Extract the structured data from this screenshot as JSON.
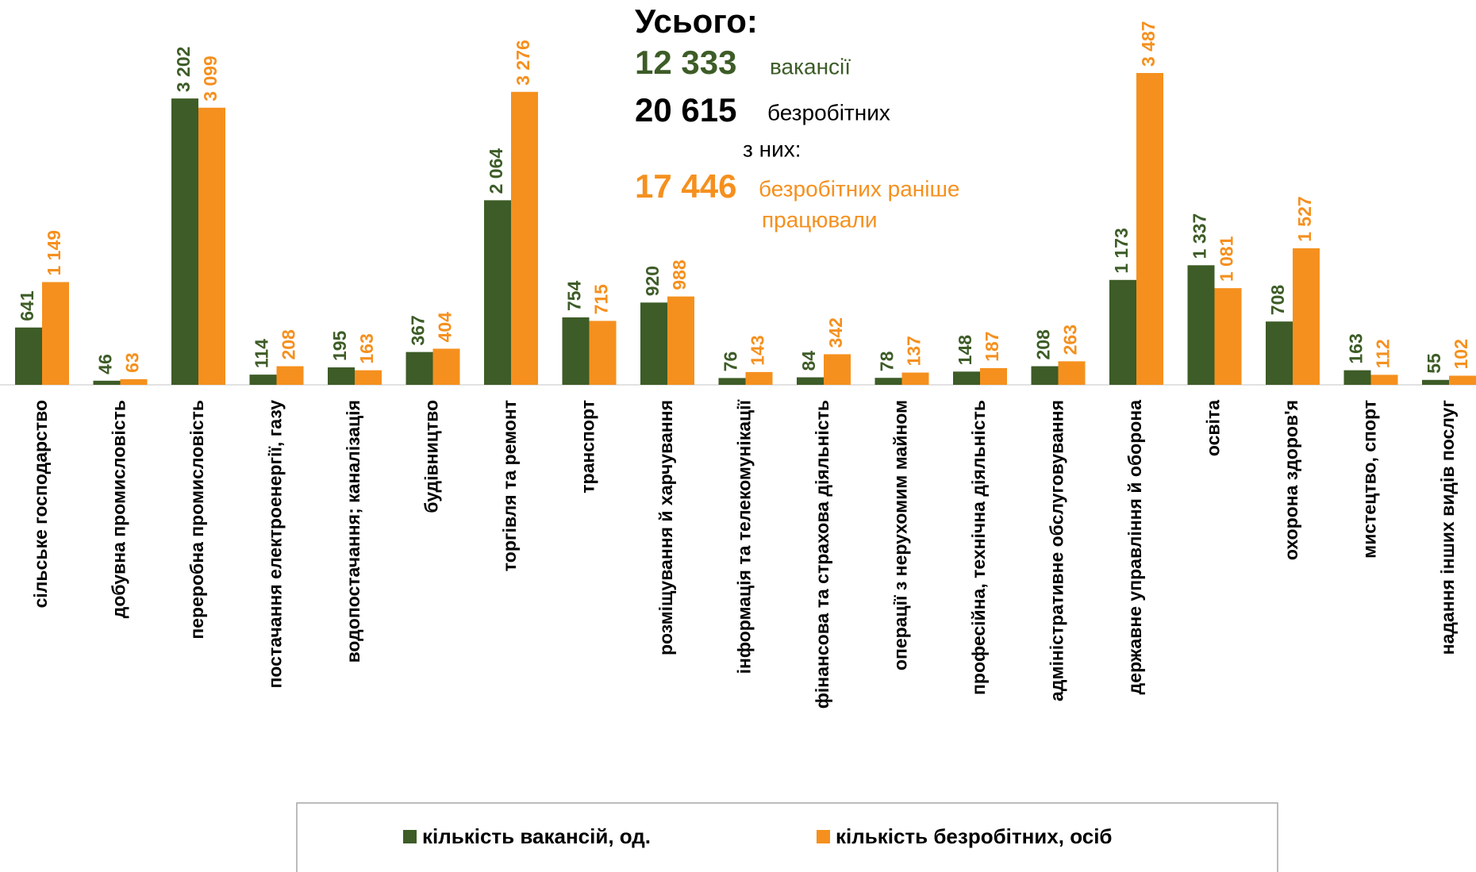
{
  "chart_data": {
    "type": "bar",
    "categories": [
      "сільське господарство",
      "добувна промисловість",
      "переробна промисловість",
      "постачання електроенергії, газу",
      "водопостачання; каналізація",
      "будівництво",
      "торгівля та ремонт",
      "транспорт",
      "розміщування й харчування",
      "інформація та телекомунікації",
      "фінансова та страхова діяльність",
      "операції з нерухомим майном",
      "професійна, технічна діяльність",
      "адміністративне обслуговування",
      "державне управління й оборона",
      "освіта",
      "охорона здоров'я",
      "мистецтво, спорт",
      "надання інших видів послуг"
    ],
    "series": [
      {
        "name": "кількість вакансій, од.",
        "color": "#3d5c27",
        "values": [
          641,
          46,
          3202,
          114,
          195,
          367,
          2064,
          754,
          920,
          76,
          84,
          78,
          148,
          208,
          1173,
          1337,
          708,
          163,
          55
        ],
        "value_labels": [
          "641",
          "46",
          "3 202",
          "114",
          "195",
          "367",
          "2 064",
          "754",
          "920",
          "76",
          "84",
          "78",
          "148",
          "208",
          "1 173",
          "1 337",
          "708",
          "163",
          "55"
        ]
      },
      {
        "name": "кількість безробітних, осіб",
        "color": "#f5901e",
        "values": [
          1149,
          63,
          3099,
          208,
          163,
          404,
          3276,
          715,
          988,
          143,
          342,
          137,
          187,
          263,
          3487,
          1081,
          1527,
          112,
          102
        ],
        "value_labels": [
          "1 149",
          "63",
          "3 099",
          "208",
          "163",
          "404",
          "3 276",
          "715",
          "988",
          "143",
          "342",
          "137",
          "187",
          "263",
          "3 487",
          "1 081",
          "1 527",
          "112",
          "102"
        ]
      }
    ],
    "annotations": {
      "title": "Усього:",
      "vacancies_total": "12 333",
      "vacancies_text": "вакансії",
      "unemployed_total": "20 615",
      "unemployed_text": "безробітних",
      "of_them": "з них:",
      "previously_worked_total": "17 446",
      "previously_worked_text_1": "безробітних раніше",
      "previously_worked_text_2": "працювали"
    },
    "legend": "bottom"
  }
}
